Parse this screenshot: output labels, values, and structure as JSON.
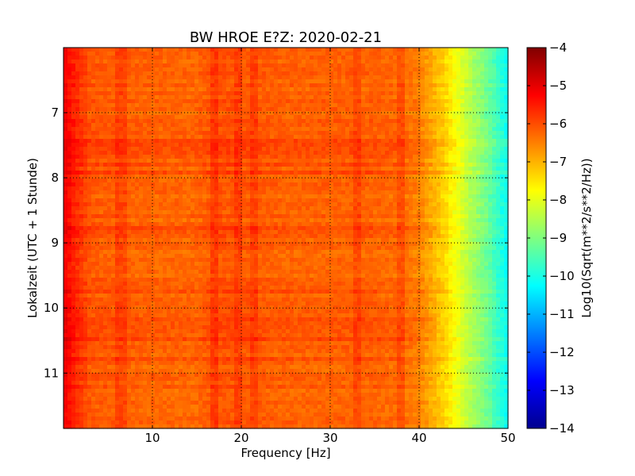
{
  "chart_data": {
    "type": "heatmap",
    "title": "BW HROE E?Z: 2020-02-21",
    "xlabel": "Frequency [Hz]",
    "ylabel": "Lokalzeit (UTC + 1 Stunde)",
    "xlim": [
      0,
      50
    ],
    "ylim": [
      11.85,
      6.0
    ],
    "y_axis_inverted": true,
    "grid": true,
    "x_ticks": [
      10,
      20,
      30,
      40,
      50
    ],
    "x_tick_labels": [
      "10",
      "20",
      "30",
      "40",
      "50"
    ],
    "y_ticks": [
      7,
      8,
      9,
      10,
      11
    ],
    "y_tick_labels": [
      "7",
      "8",
      "9",
      "10",
      "11"
    ],
    "colormap": "jet",
    "colorbar": {
      "label": "Log10(Sqrt(m**2/s**2/Hz))",
      "range": [
        -14,
        -4
      ],
      "ticks": [
        -4,
        -5,
        -6,
        -7,
        -8,
        -9,
        -10,
        -11,
        -12,
        -13,
        -14
      ],
      "tick_labels": [
        "−4",
        "−5",
        "−6",
        "−7",
        "−8",
        "−9",
        "−10",
        "−11",
        "−12",
        "−13",
        "−14"
      ]
    },
    "spectrum_profile": {
      "frequency_hz": [
        0,
        1,
        3,
        8,
        15,
        17,
        20,
        25,
        30,
        35,
        38,
        40,
        41,
        42,
        43,
        44,
        45,
        46,
        47,
        48,
        49,
        50
      ],
      "log10_amplitude": [
        -5.1,
        -5.5,
        -6.1,
        -6.2,
        -6.25,
        -6.05,
        -6.1,
        -6.2,
        -6.2,
        -6.2,
        -6.3,
        -6.5,
        -6.8,
        -7.1,
        -7.4,
        -7.8,
        -8.2,
        -8.6,
        -8.9,
        -9.3,
        -9.8,
        -10.2
      ]
    },
    "enhanced_lines_hz": [
      6.5,
      17,
      19.5,
      21.5,
      33,
      38
    ],
    "enhanced_periods_h": [
      7.6,
      8.8,
      10.25,
      10.4
    ]
  }
}
